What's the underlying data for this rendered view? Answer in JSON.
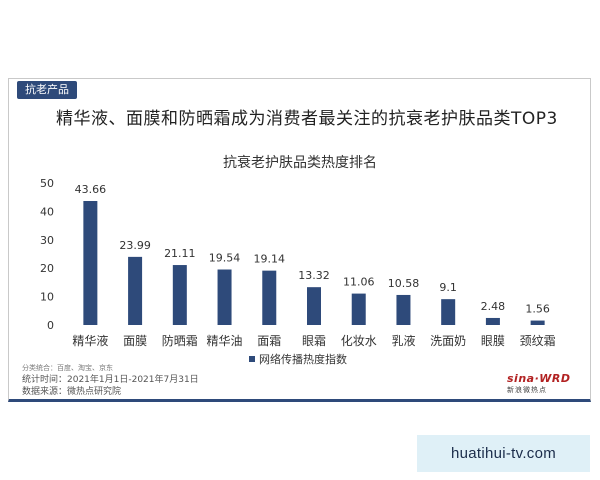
{
  "header": {
    "tag": "抗老产品",
    "headline": "精华液、面膜和防晒霜成为消费者最关注的抗衰老护肤品类TOP3"
  },
  "chart_data": {
    "type": "bar",
    "title": "抗衰老护肤品类热度排名",
    "categories": [
      "精华液",
      "面膜",
      "防晒霜",
      "精华油",
      "面霜",
      "眼霜",
      "化妆水",
      "乳液",
      "洗面奶",
      "眼膜",
      "颈纹霜"
    ],
    "series": [
      {
        "name": "网络传播热度指数",
        "values": [
          43.66,
          23.99,
          21.11,
          19.54,
          19.14,
          13.32,
          11.06,
          10.58,
          9.1,
          2.48,
          1.56
        ]
      }
    ],
    "value_labels": [
      "43.66",
      "23.99",
      "21.11",
      "19.54",
      "19.14",
      "13.32",
      "11.06",
      "10.58",
      "9.1",
      "2.48",
      "1.56"
    ],
    "ylim": [
      0,
      50
    ],
    "yticks": [
      "0",
      "10",
      "20",
      "30",
      "40",
      "50"
    ],
    "grid": false,
    "legend_position": "bottom",
    "bar_color": "#2e4a7a"
  },
  "notes": {
    "source_scope": "分类统合：百度、淘宝、京东",
    "period": "统计时间：2021年1月1日-2021年7月31日",
    "source": "数据来源：微热点研究院"
  },
  "logo": {
    "main": "sina·WRD",
    "sub": "新浪微热点"
  },
  "watermark": "huatihui-tv.com"
}
